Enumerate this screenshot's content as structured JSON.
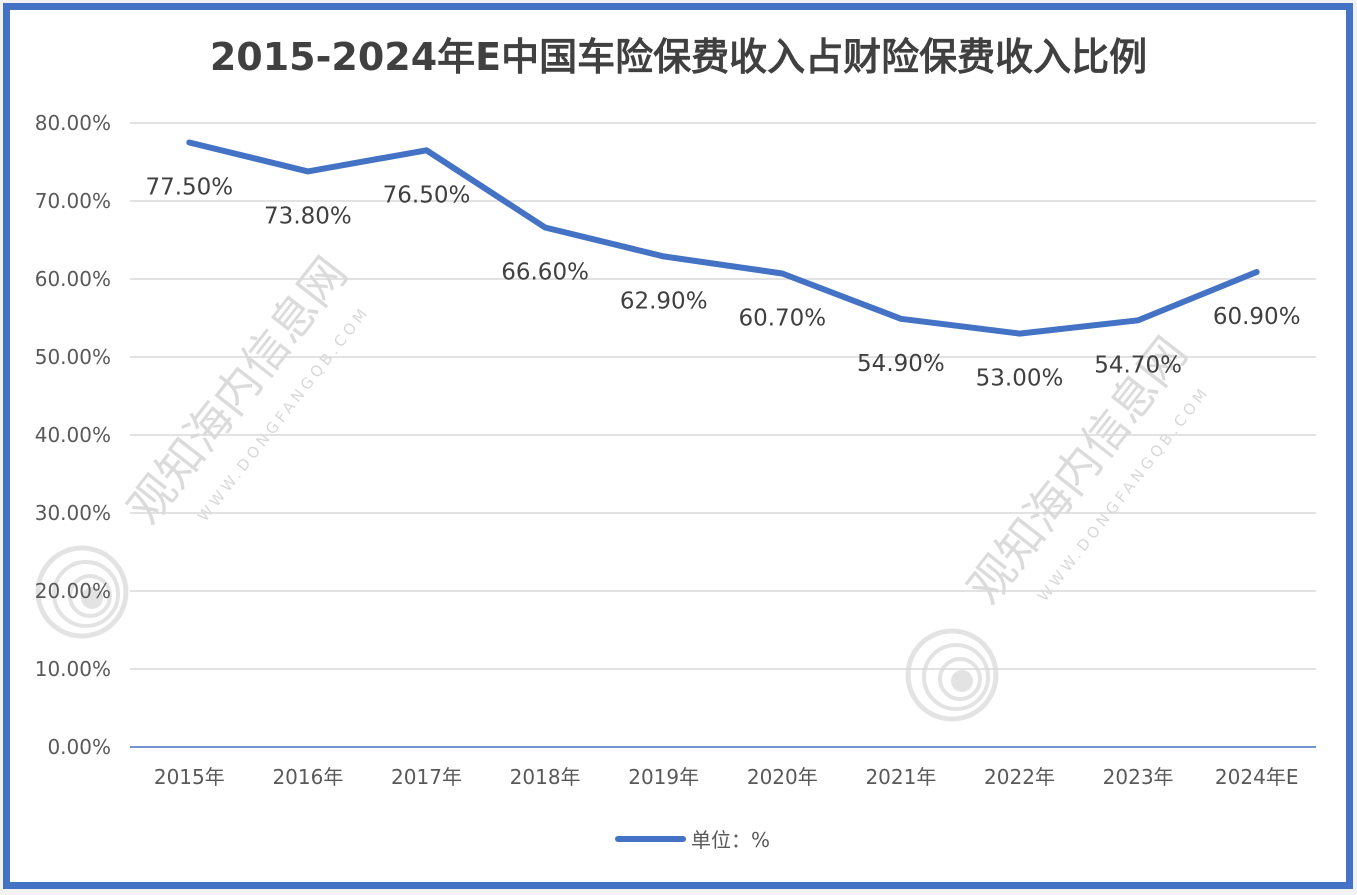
{
  "chart_data": {
    "type": "line",
    "title": "2015-2024年E中国车险保费收入占财险保费收入比例",
    "categories": [
      "2015年",
      "2016年",
      "2017年",
      "2018年",
      "2019年",
      "2020年",
      "2021年",
      "2022年",
      "2023年",
      "2024年E"
    ],
    "series": [
      {
        "name": "单位：%",
        "values": [
          77.5,
          73.8,
          76.5,
          66.6,
          62.9,
          60.7,
          54.9,
          53.0,
          54.7,
          60.9
        ],
        "labels": [
          "77.50%",
          "73.80%",
          "76.50%",
          "66.60%",
          "62.90%",
          "60.70%",
          "54.90%",
          "53.00%",
          "54.70%",
          "60.90%"
        ],
        "color": "#4472C4"
      }
    ],
    "xlabel": "",
    "ylabel": "",
    "ylim": [
      0,
      80
    ],
    "yticks": [
      "0.00%",
      "10.00%",
      "20.00%",
      "30.00%",
      "40.00%",
      "50.00%",
      "60.00%",
      "70.00%",
      "80.00%"
    ],
    "grid": true,
    "legend_position": "bottom"
  },
  "title": "2015-2024年E中国车险保费收入占财险保费收入比例",
  "legend": {
    "label": "单位：%"
  },
  "watermark": {
    "text": "观知海内信息网",
    "url": "WWW.DONGFANGQB.COM"
  },
  "colors": {
    "line": "#4472C4",
    "frame": "#4472C4",
    "grid": "#d9d9d9",
    "text": "#595959"
  }
}
